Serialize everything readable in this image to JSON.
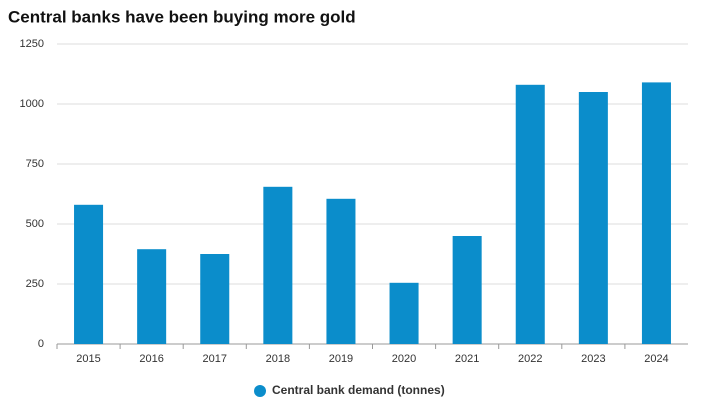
{
  "chart_data": {
    "type": "bar",
    "title": "Central banks have been buying more gold",
    "categories": [
      "2015",
      "2016",
      "2017",
      "2018",
      "2019",
      "2020",
      "2021",
      "2022",
      "2023",
      "2024"
    ],
    "series": [
      {
        "name": "Central bank demand (tonnes)",
        "color": "#0b8dcb",
        "values": [
          580,
          395,
          375,
          655,
          605,
          255,
          450,
          1080,
          1050,
          1090
        ]
      }
    ],
    "ylim": [
      0,
      1250
    ],
    "yticks": [
      0,
      250,
      500,
      750,
      1000,
      1250
    ],
    "grid": true,
    "legend": "bottom"
  }
}
